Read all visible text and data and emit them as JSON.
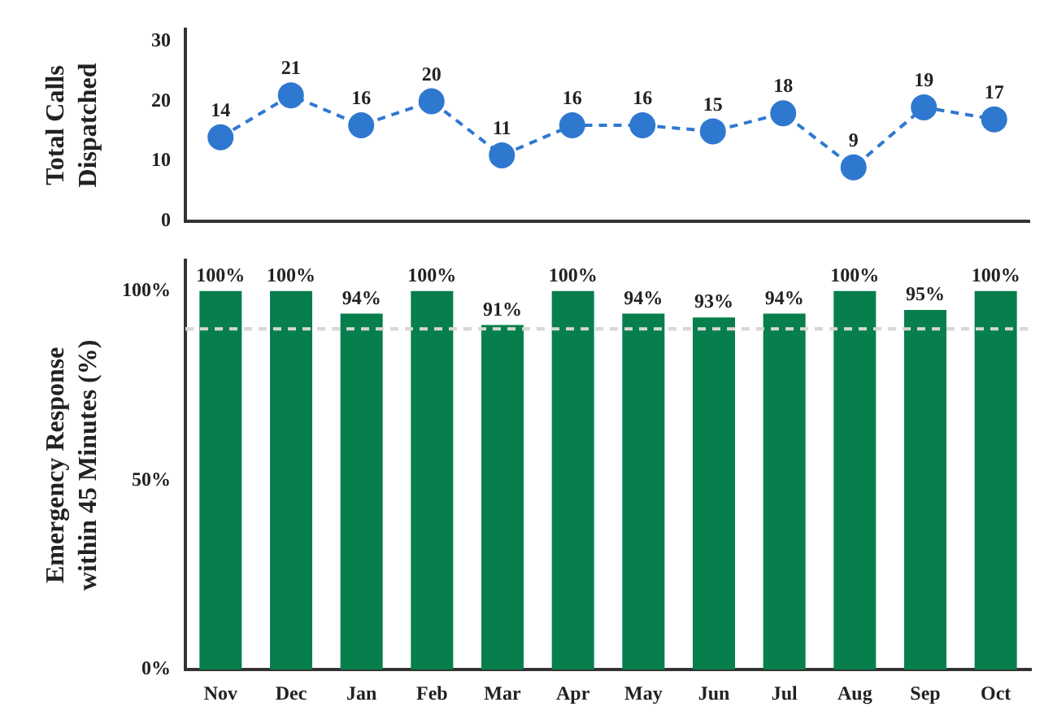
{
  "chart_data": [
    {
      "type": "line",
      "ylabel": "Total Calls\nDispatched",
      "categories": [
        null,
        null,
        null,
        null,
        null,
        null,
        null,
        null,
        null,
        null,
        null,
        null
      ],
      "series": [
        {
          "color": "#2f78d0",
          "values": [
            14,
            21,
            16,
            20,
            11,
            16,
            16,
            15,
            18,
            9,
            19,
            17
          ]
        }
      ],
      "ylim": [
        0,
        32
      ],
      "yticks": [
        0,
        10,
        20,
        30
      ],
      "data_labels": true,
      "marker": "circle",
      "line_style": "dashed",
      "tick_labels": "y",
      "grid": false,
      "legend": false
    },
    {
      "type": "bar",
      "ylabel": "Emergency Response\nwithin 45 Minutes (%)",
      "categories": [
        "Nov",
        "Dec",
        "Jan",
        "Feb",
        "Mar",
        "Apr",
        "May",
        "Jun",
        "Jul",
        "Aug",
        "Sep",
        "Oct"
      ],
      "series": [
        {
          "color": "#067f4c",
          "values": [
            100,
            100,
            94,
            100,
            91,
            100,
            94,
            93,
            94,
            100,
            95,
            100
          ],
          "value_labels": [
            "100%",
            "100%",
            "94%",
            "100%",
            "91%",
            "100%",
            "94%",
            "93%",
            "94%",
            "100%",
            "95%",
            "100%"
          ]
        }
      ],
      "ylim": [
        0,
        108
      ],
      "yticks": [
        {
          "value": 0,
          "label": "0%"
        },
        {
          "value": 50,
          "label": "50%"
        },
        {
          "value": 100,
          "label": "100%"
        }
      ],
      "ref_lines": [
        {
          "axis": "y",
          "value": 90,
          "color": "#d8d8d8",
          "line_style": "dashed"
        }
      ],
      "grid": false,
      "legend": false
    }
  ]
}
